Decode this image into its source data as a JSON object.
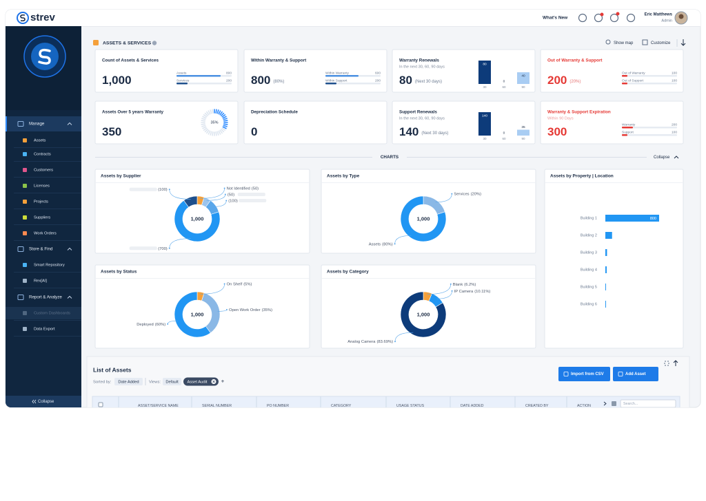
{
  "header": {
    "logo": "strev",
    "whats_new": "What's New",
    "user_name": "Eric Matthews",
    "user_role": "Admin"
  },
  "sidebar": {
    "groups": [
      {
        "label": "Manage",
        "items": [
          "Assets",
          "Contracts",
          "Customers",
          "Licenses",
          "Projects",
          "Suppliers",
          "Work Orders"
        ]
      },
      {
        "label": "Store & Find",
        "items": [
          "Smart Repository",
          "Rex[AI]"
        ]
      },
      {
        "label": "Report & Analyze",
        "items": [
          "Custom Dashboards",
          "Data Export"
        ]
      }
    ],
    "collapse": "Collapse"
  },
  "summary": {
    "title": "ASSETS & SERVICES",
    "show_map": "Show map",
    "customize": "Customize",
    "cards": [
      {
        "title": "Count of Assets & Services",
        "value": 1000,
        "value_label": "1,000",
        "bars": [
          {
            "name": "Assets",
            "value": 800,
            "color": "#4a90e2"
          },
          {
            "name": "Services",
            "value": 200,
            "color": "#1e4f8c"
          }
        ]
      },
      {
        "title": "Within Warranty & Support",
        "value": 800,
        "note": "(80%)",
        "bars": [
          {
            "name": "Within Warranty",
            "value": 600,
            "color": "#4a90e2"
          },
          {
            "name": "Within Support",
            "value": 200,
            "color": "#1e4f8c"
          }
        ]
      },
      {
        "title": "Warranty Renewals",
        "subtitle": "In the next 30, 60, 90 days",
        "value": 80,
        "note": "(Next 30 days)",
        "columns": {
          "categories": [
            30,
            60,
            90
          ],
          "values": [
            80,
            0,
            40
          ],
          "colors": [
            "#0d3b7a",
            "#4a86d9",
            "#a9cdf3"
          ]
        }
      },
      {
        "title": "Out of Warranty & Support",
        "value": 200,
        "note": "(20%)",
        "color": "#e53935",
        "bars": [
          {
            "name": "Out of Warranty",
            "value": 100,
            "color": "#e53935"
          },
          {
            "name": "Out of Support",
            "value": 100,
            "color": "#e53935"
          }
        ]
      },
      {
        "title": "Assets Over 5 years Warranty",
        "value": 350,
        "ring": 35,
        "ring_label": "35%"
      },
      {
        "title": "Depreciation Schedule",
        "value": 0
      },
      {
        "title": "Support Renewals",
        "subtitle": "In the next 30, 60, 90 days",
        "value": 140,
        "note": "(Next 30 days)",
        "columns": {
          "categories": [
            30,
            60,
            90
          ],
          "values": [
            140,
            0,
            35
          ],
          "colors": [
            "#0d3b7a",
            "#4a86d9",
            "#a9cdf3"
          ]
        }
      },
      {
        "title": "Warranty & Support Expiration",
        "subtitle": "Within 90 Days",
        "value": 300,
        "color": "#e53935",
        "bars": [
          {
            "name": "Warranty",
            "value": 200,
            "color": "#e53935"
          },
          {
            "name": "Support",
            "value": 100,
            "color": "#e53935"
          }
        ]
      }
    ]
  },
  "charts_divider": {
    "label": "CHARTS",
    "collapse": "Collapse"
  },
  "chart_data": [
    {
      "type": "donut",
      "title": "Assets by Supplier",
      "center_label": "1,000",
      "categories": [
        "Not Identified",
        null,
        null,
        null,
        null
      ],
      "values": [
        50,
        50,
        100,
        700,
        100
      ],
      "value_labels": [
        "(50)",
        "(50)",
        "(100)",
        "(700)",
        "(100)"
      ],
      "colors": [
        "#f5a03a",
        "#9cc4ec",
        "#5aa7ea",
        "#2196f3",
        "#1e4f8c"
      ]
    },
    {
      "type": "donut",
      "title": "Assets by Type",
      "center_label": "1,000",
      "categories": [
        "Services",
        "Assets"
      ],
      "values": [
        20,
        80
      ],
      "value_labels": [
        "(20%)",
        "(80%)"
      ],
      "colors": [
        "#8ab8e6",
        "#2196f3"
      ]
    },
    {
      "type": "hbar",
      "title": "Assets by Property | Location",
      "categories": [
        "Building 1",
        "Building 2",
        "Building 3",
        "Building 4",
        "Building 5",
        "Building 6"
      ],
      "values": [
        800,
        100,
        25,
        20,
        10,
        10
      ],
      "color": "#2196f3"
    },
    {
      "type": "donut",
      "title": "Assets by Status",
      "center_label": "1,000",
      "categories": [
        "On Shelf",
        "Open Work Order",
        "Deployed"
      ],
      "values": [
        5,
        35,
        60
      ],
      "value_labels": [
        "(5%)",
        "(35%)",
        "(60%)"
      ],
      "colors": [
        "#f5a03a",
        "#8ab8e6",
        "#2196f3"
      ]
    },
    {
      "type": "donut",
      "title": "Assets by Category",
      "center_label": "1,000",
      "categories": [
        "Blank",
        "IP Camera",
        "Analog Camera"
      ],
      "values": [
        6.2,
        10.11,
        83.69
      ],
      "value_labels": [
        "(6.2%)",
        "(10.11%)",
        "(83.69%)"
      ],
      "colors": [
        "#f5a03a",
        "#2196f3",
        "#0d3b7a"
      ]
    }
  ],
  "list": {
    "title": "List of Assets",
    "sorted_by": "Sorted by:",
    "sort_value": "Date Added",
    "views": "Views:",
    "view_options": [
      "Default",
      "Asset Audit"
    ],
    "add_view": "+",
    "buttons": [
      "Import from CSV",
      "Add Asset"
    ],
    "columns": [
      "ASSET/SERVICE NAME",
      "SERIAL NUMBER",
      "PO NUMBER",
      "CATEGORY",
      "USAGE STATUS",
      "DATE ADDED",
      "CREATED BY",
      "ACTION"
    ],
    "search_placeholder": "Search..."
  }
}
